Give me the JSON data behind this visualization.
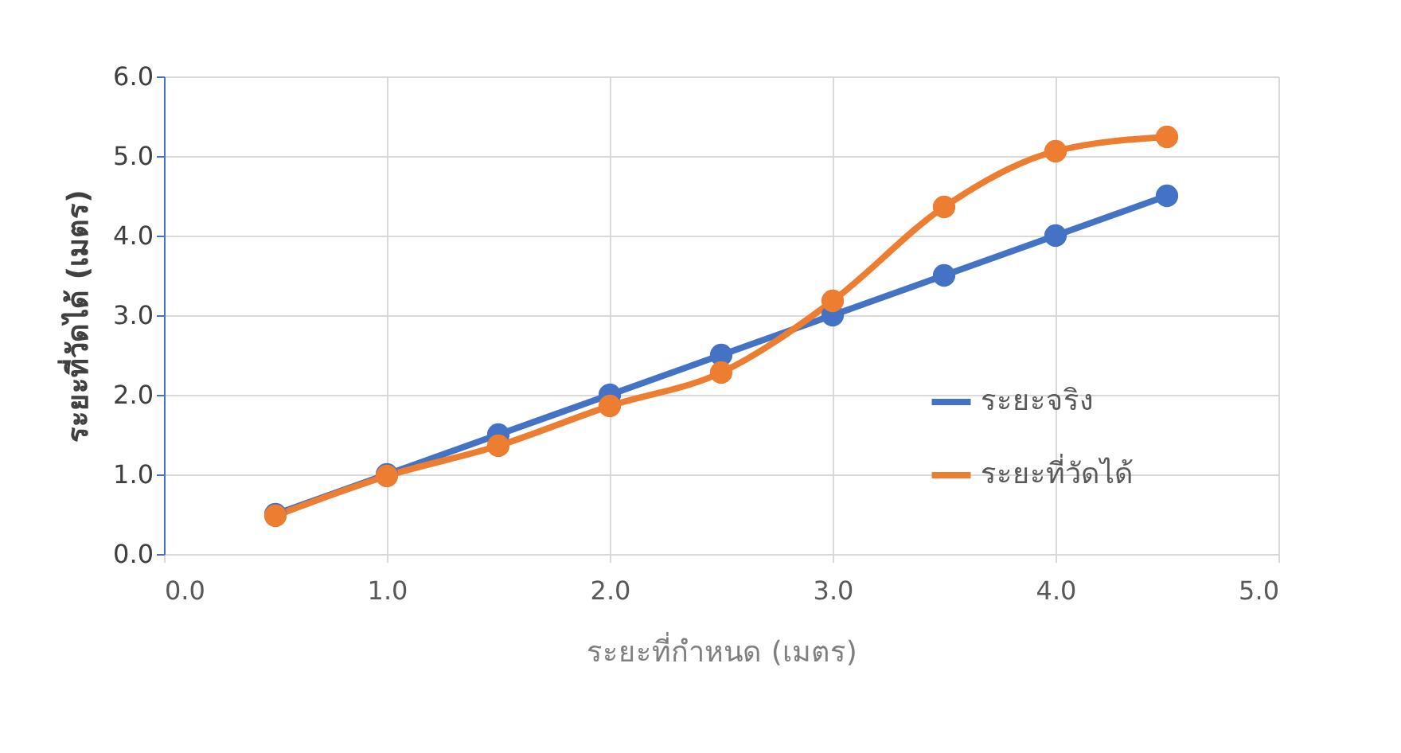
{
  "chart_data": {
    "type": "line",
    "xlabel": "ระยะที่กำหนด (เมตร)",
    "ylabel": "ระยะที่วัดได้ (เมตร)",
    "x": [
      0.5,
      1.0,
      1.5,
      2.0,
      2.5,
      3.0,
      3.5,
      4.0,
      4.5
    ],
    "series": [
      {
        "name": "ระยะจริง",
        "color": "#4472c4",
        "values": [
          0.5,
          1.0,
          1.5,
          2.0,
          2.5,
          3.0,
          3.5,
          4.0,
          4.5
        ]
      },
      {
        "name": "ระยะที่วัดได้",
        "color": "#ed7d31",
        "values": [
          0.48,
          0.98,
          1.36,
          1.86,
          2.28,
          3.18,
          4.36,
          5.06,
          5.24
        ]
      }
    ],
    "xlim": [
      0,
      5
    ],
    "xticks": [
      {
        "value": 0,
        "label": "0.0"
      },
      {
        "value": 1,
        "label": "1.0"
      },
      {
        "value": 2,
        "label": "2.0"
      },
      {
        "value": 3,
        "label": "3.0"
      },
      {
        "value": 4,
        "label": "4.0"
      },
      {
        "value": 5,
        "label": "5.0"
      }
    ],
    "ylim": [
      0,
      6
    ],
    "yticks": [
      {
        "value": 0,
        "label": "0.0"
      },
      {
        "value": 1,
        "label": "1.0"
      },
      {
        "value": 2,
        "label": "2.0"
      },
      {
        "value": 3,
        "label": "3.0"
      },
      {
        "value": 4,
        "label": "4.0"
      },
      {
        "value": 5,
        "label": "5.0"
      },
      {
        "value": 6,
        "label": "6.0"
      }
    ],
    "grid": true,
    "legend": "right",
    "marker": "circle",
    "line_style": "solid"
  }
}
